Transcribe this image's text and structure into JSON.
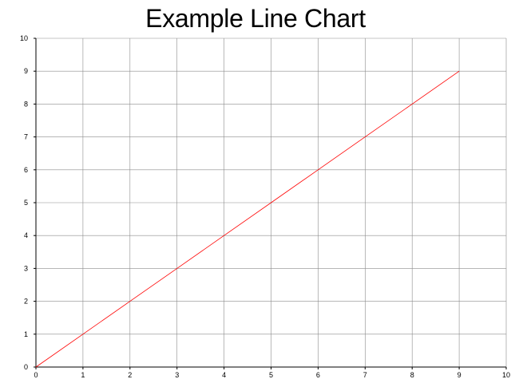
{
  "chart_data": {
    "type": "line",
    "title": "Example Line Chart",
    "xlabel": "",
    "ylabel": "",
    "xlim": [
      0,
      10
    ],
    "ylim": [
      0,
      10
    ],
    "x_ticks": [
      "0",
      "1",
      "2",
      "3",
      "4",
      "5",
      "6",
      "7",
      "8",
      "9",
      "10"
    ],
    "y_ticks": [
      "0",
      "1",
      "2",
      "3",
      "4",
      "5",
      "6",
      "7",
      "8",
      "9",
      "10"
    ],
    "grid": true,
    "legend": "none",
    "series": [
      {
        "color": "#ff0000",
        "x": [
          0,
          1,
          2,
          3,
          4,
          5,
          6,
          7,
          8,
          9
        ],
        "y": [
          0,
          1,
          2,
          3,
          4,
          5,
          6,
          7,
          8,
          9
        ]
      }
    ]
  }
}
